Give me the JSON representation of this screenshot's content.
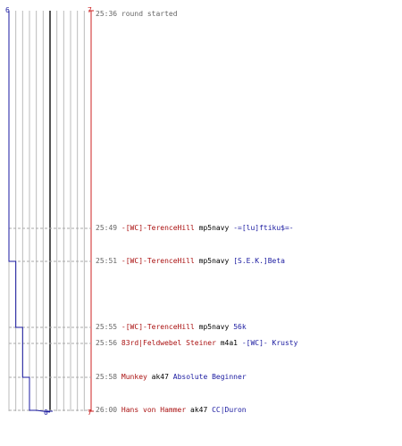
{
  "scores": {
    "top_left": "6",
    "top_right": "7",
    "bottom_center": "0",
    "bottom_right": "7"
  },
  "colors": {
    "team_blue": "#1a1aa0",
    "team_red": "#cc2222",
    "killer_text": "#aa1111",
    "victim_text": "#1a1aa0",
    "grid": "#bbbbbb",
    "center_line": "#555555"
  },
  "timeline": {
    "start_event": {
      "time": "25:36",
      "text": "round started"
    },
    "kills": [
      {
        "time": "25:49",
        "killer": "-[WC]-TerenceHill",
        "weapon": "mp5navy",
        "victim": "-=[lu]ftiku$=-",
        "blue_score": 6
      },
      {
        "time": "25:51",
        "killer": "-[WC]-TerenceHill",
        "weapon": "mp5navy",
        "victim": "[S.E.K.]Beta",
        "blue_score": 5
      },
      {
        "time": "25:55",
        "killer": "-[WC]-TerenceHill",
        "weapon": "mp5navy",
        "victim": "56k",
        "blue_score": 4
      },
      {
        "time": "25:56",
        "killer": "83rd|Feldwebel Steiner",
        "weapon": "m4a1",
        "victim": "-[WC]- Krusty",
        "blue_score": 4
      },
      {
        "time": "25:58",
        "killer": "Munkey",
        "weapon": "ak47",
        "victim": "Absolute Beginner",
        "blue_score": 3
      },
      {
        "time": "26:00",
        "killer": "Hans von Hammer",
        "weapon": "ak47",
        "victim": "CC|Duron",
        "blue_score": 2
      }
    ]
  }
}
